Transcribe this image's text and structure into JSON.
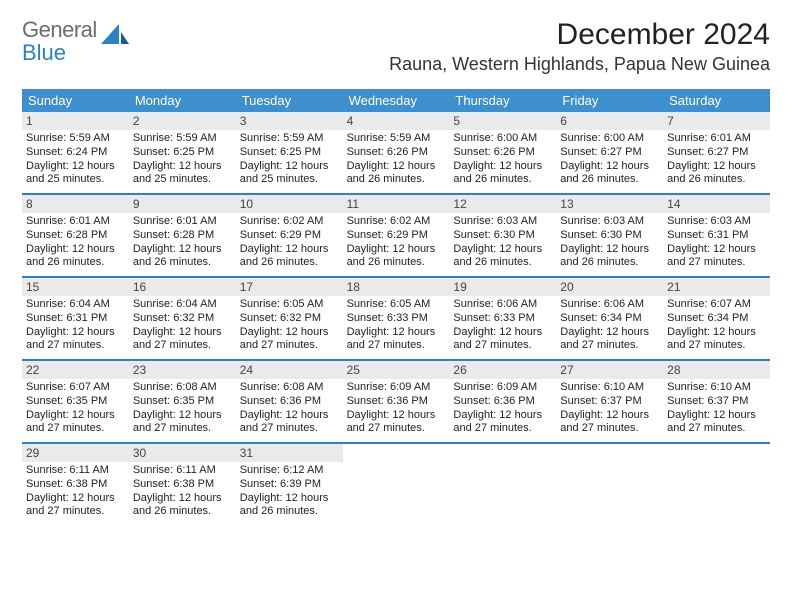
{
  "brand": {
    "line1": "General",
    "line2": "Blue",
    "accent": "#2b82c5",
    "grey": "#6c6c6c"
  },
  "title": "December 2024",
  "location": "Rauna, Western Highlands, Papua New Guinea",
  "colors": {
    "header_bg": "#3e8fcd",
    "header_fg": "#ffffff",
    "week_border": "#2b82c5",
    "datebar_bg": "#eaeaea",
    "page_bg": "#ffffff"
  },
  "dayNames": [
    "Sunday",
    "Monday",
    "Tuesday",
    "Wednesday",
    "Thursday",
    "Friday",
    "Saturday"
  ],
  "weeks": [
    [
      {
        "d": "1",
        "sr": "5:59 AM",
        "ss": "6:24 PM",
        "dl": "12 hours and 25 minutes."
      },
      {
        "d": "2",
        "sr": "5:59 AM",
        "ss": "6:25 PM",
        "dl": "12 hours and 25 minutes."
      },
      {
        "d": "3",
        "sr": "5:59 AM",
        "ss": "6:25 PM",
        "dl": "12 hours and 25 minutes."
      },
      {
        "d": "4",
        "sr": "5:59 AM",
        "ss": "6:26 PM",
        "dl": "12 hours and 26 minutes."
      },
      {
        "d": "5",
        "sr": "6:00 AM",
        "ss": "6:26 PM",
        "dl": "12 hours and 26 minutes."
      },
      {
        "d": "6",
        "sr": "6:00 AM",
        "ss": "6:27 PM",
        "dl": "12 hours and 26 minutes."
      },
      {
        "d": "7",
        "sr": "6:01 AM",
        "ss": "6:27 PM",
        "dl": "12 hours and 26 minutes."
      }
    ],
    [
      {
        "d": "8",
        "sr": "6:01 AM",
        "ss": "6:28 PM",
        "dl": "12 hours and 26 minutes."
      },
      {
        "d": "9",
        "sr": "6:01 AM",
        "ss": "6:28 PM",
        "dl": "12 hours and 26 minutes."
      },
      {
        "d": "10",
        "sr": "6:02 AM",
        "ss": "6:29 PM",
        "dl": "12 hours and 26 minutes."
      },
      {
        "d": "11",
        "sr": "6:02 AM",
        "ss": "6:29 PM",
        "dl": "12 hours and 26 minutes."
      },
      {
        "d": "12",
        "sr": "6:03 AM",
        "ss": "6:30 PM",
        "dl": "12 hours and 26 minutes."
      },
      {
        "d": "13",
        "sr": "6:03 AM",
        "ss": "6:30 PM",
        "dl": "12 hours and 26 minutes."
      },
      {
        "d": "14",
        "sr": "6:03 AM",
        "ss": "6:31 PM",
        "dl": "12 hours and 27 minutes."
      }
    ],
    [
      {
        "d": "15",
        "sr": "6:04 AM",
        "ss": "6:31 PM",
        "dl": "12 hours and 27 minutes."
      },
      {
        "d": "16",
        "sr": "6:04 AM",
        "ss": "6:32 PM",
        "dl": "12 hours and 27 minutes."
      },
      {
        "d": "17",
        "sr": "6:05 AM",
        "ss": "6:32 PM",
        "dl": "12 hours and 27 minutes."
      },
      {
        "d": "18",
        "sr": "6:05 AM",
        "ss": "6:33 PM",
        "dl": "12 hours and 27 minutes."
      },
      {
        "d": "19",
        "sr": "6:06 AM",
        "ss": "6:33 PM",
        "dl": "12 hours and 27 minutes."
      },
      {
        "d": "20",
        "sr": "6:06 AM",
        "ss": "6:34 PM",
        "dl": "12 hours and 27 minutes."
      },
      {
        "d": "21",
        "sr": "6:07 AM",
        "ss": "6:34 PM",
        "dl": "12 hours and 27 minutes."
      }
    ],
    [
      {
        "d": "22",
        "sr": "6:07 AM",
        "ss": "6:35 PM",
        "dl": "12 hours and 27 minutes."
      },
      {
        "d": "23",
        "sr": "6:08 AM",
        "ss": "6:35 PM",
        "dl": "12 hours and 27 minutes."
      },
      {
        "d": "24",
        "sr": "6:08 AM",
        "ss": "6:36 PM",
        "dl": "12 hours and 27 minutes."
      },
      {
        "d": "25",
        "sr": "6:09 AM",
        "ss": "6:36 PM",
        "dl": "12 hours and 27 minutes."
      },
      {
        "d": "26",
        "sr": "6:09 AM",
        "ss": "6:36 PM",
        "dl": "12 hours and 27 minutes."
      },
      {
        "d": "27",
        "sr": "6:10 AM",
        "ss": "6:37 PM",
        "dl": "12 hours and 27 minutes."
      },
      {
        "d": "28",
        "sr": "6:10 AM",
        "ss": "6:37 PM",
        "dl": "12 hours and 27 minutes."
      }
    ],
    [
      {
        "d": "29",
        "sr": "6:11 AM",
        "ss": "6:38 PM",
        "dl": "12 hours and 27 minutes."
      },
      {
        "d": "30",
        "sr": "6:11 AM",
        "ss": "6:38 PM",
        "dl": "12 hours and 26 minutes."
      },
      {
        "d": "31",
        "sr": "6:12 AM",
        "ss": "6:39 PM",
        "dl": "12 hours and 26 minutes."
      },
      null,
      null,
      null,
      null
    ]
  ],
  "labels": {
    "sunrise": "Sunrise:",
    "sunset": "Sunset:",
    "daylight": "Daylight:"
  }
}
